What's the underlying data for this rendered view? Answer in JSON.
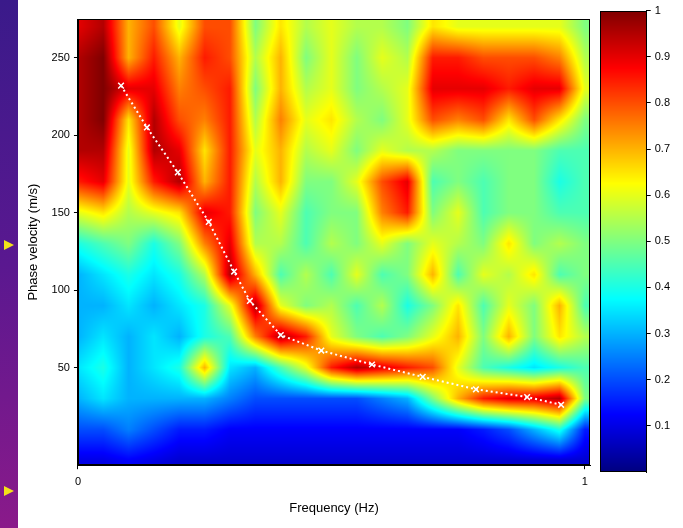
{
  "chart_data": {
    "type": "heatmap",
    "xlabel": "Frequency (Hz)",
    "ylabel": "Phase velocity (m/s)",
    "xlim": [
      0,
      1.01
    ],
    "xticks": [
      0,
      1
    ],
    "ylim": [
      -13,
      275
    ],
    "yticks": [
      50,
      100,
      150,
      200,
      250
    ],
    "grid": false,
    "heatmap": {
      "x": [
        0,
        0.05,
        0.1,
        0.15,
        0.2,
        0.25,
        0.3,
        0.35,
        0.4,
        0.45,
        0.5,
        0.55,
        0.6,
        0.65,
        0.7,
        0.75,
        0.8,
        0.85,
        0.9,
        0.95,
        1
      ],
      "y": [
        -10,
        10,
        30,
        50,
        70,
        90,
        110,
        130,
        150,
        170,
        190,
        210,
        230,
        250,
        270
      ],
      "values": [
        [
          0.1,
          0.1,
          0.12,
          0.1,
          0.08,
          0.08,
          0.08,
          0.08,
          0.08,
          0.08,
          0.08,
          0.08,
          0.08,
          0.08,
          0.08,
          0.08,
          0.08,
          0.08,
          0.08,
          0.08,
          0.08
        ],
        [
          0.2,
          0.2,
          0.25,
          0.2,
          0.15,
          0.15,
          0.12,
          0.12,
          0.12,
          0.12,
          0.12,
          0.12,
          0.12,
          0.12,
          0.12,
          0.12,
          0.15,
          0.2,
          0.3,
          0.4,
          0.15
        ],
        [
          0.3,
          0.35,
          0.3,
          0.3,
          0.3,
          0.3,
          0.25,
          0.2,
          0.2,
          0.2,
          0.2,
          0.2,
          0.25,
          0.3,
          0.5,
          0.7,
          0.85,
          0.9,
          0.9,
          0.95,
          0.5
        ],
        [
          0.35,
          0.4,
          0.3,
          0.35,
          0.4,
          0.7,
          0.35,
          0.3,
          0.45,
          0.6,
          0.85,
          0.95,
          0.9,
          0.85,
          0.8,
          0.6,
          0.45,
          0.4,
          0.35,
          0.4,
          0.45
        ],
        [
          0.3,
          0.35,
          0.3,
          0.35,
          0.3,
          0.4,
          0.45,
          0.75,
          0.95,
          0.85,
          0.6,
          0.5,
          0.45,
          0.5,
          0.6,
          0.7,
          0.5,
          0.7,
          0.5,
          0.65,
          0.55
        ],
        [
          0.3,
          0.3,
          0.35,
          0.3,
          0.35,
          0.4,
          0.6,
          0.95,
          0.6,
          0.5,
          0.55,
          0.45,
          0.55,
          0.4,
          0.5,
          0.65,
          0.45,
          0.6,
          0.5,
          0.7,
          0.45
        ],
        [
          0.3,
          0.35,
          0.4,
          0.35,
          0.4,
          0.55,
          0.95,
          0.7,
          0.45,
          0.55,
          0.45,
          0.6,
          0.45,
          0.5,
          0.7,
          0.45,
          0.6,
          0.55,
          0.65,
          0.45,
          0.5
        ],
        [
          0.4,
          0.45,
          0.5,
          0.4,
          0.5,
          0.75,
          0.9,
          0.55,
          0.55,
          0.45,
          0.55,
          0.5,
          0.6,
          0.5,
          0.6,
          0.55,
          0.5,
          0.65,
          0.5,
          0.55,
          0.5
        ],
        [
          0.6,
          0.65,
          0.55,
          0.6,
          0.65,
          0.9,
          0.85,
          0.5,
          0.6,
          0.45,
          0.5,
          0.5,
          0.75,
          0.85,
          0.5,
          0.6,
          0.45,
          0.5,
          0.5,
          0.45,
          0.45
        ],
        [
          0.85,
          0.9,
          0.6,
          0.85,
          0.95,
          0.7,
          0.85,
          0.55,
          0.7,
          0.5,
          0.5,
          0.6,
          0.8,
          0.9,
          0.45,
          0.5,
          0.45,
          0.5,
          0.5,
          0.4,
          0.45
        ],
        [
          0.95,
          0.95,
          0.6,
          0.95,
          0.9,
          0.65,
          0.85,
          0.6,
          0.7,
          0.55,
          0.6,
          0.5,
          0.6,
          0.55,
          0.55,
          0.5,
          0.5,
          0.5,
          0.5,
          0.45,
          0.45
        ],
        [
          0.95,
          1,
          0.65,
          0.95,
          0.8,
          0.75,
          0.85,
          0.55,
          0.75,
          0.6,
          0.65,
          0.55,
          0.5,
          0.6,
          0.8,
          0.75,
          0.8,
          0.65,
          0.8,
          0.65,
          0.5
        ],
        [
          0.95,
          1,
          0.9,
          0.9,
          0.75,
          0.8,
          0.85,
          0.5,
          0.7,
          0.55,
          0.6,
          0.5,
          0.55,
          0.6,
          0.9,
          0.9,
          0.9,
          0.85,
          0.9,
          0.9,
          0.6
        ],
        [
          0.95,
          1,
          0.7,
          0.85,
          0.7,
          0.85,
          0.8,
          0.55,
          0.7,
          0.5,
          0.6,
          0.5,
          0.6,
          0.55,
          0.85,
          0.85,
          0.8,
          0.8,
          0.8,
          0.75,
          0.55
        ],
        [
          0.9,
          0.95,
          0.7,
          0.8,
          0.6,
          0.8,
          0.8,
          0.5,
          0.65,
          0.55,
          0.6,
          0.55,
          0.55,
          0.5,
          0.65,
          0.6,
          0.6,
          0.6,
          0.6,
          0.6,
          0.5
        ]
      ]
    },
    "colorbar": {
      "lim": [
        0,
        1
      ],
      "ticks": [
        0.1,
        0.2,
        0.3,
        0.4,
        0.5,
        0.6,
        0.7,
        0.8,
        0.9,
        1
      ]
    },
    "series": [
      {
        "type": "line",
        "color": "#ffffff",
        "marker": "x",
        "line_style": "dotted",
        "x": [
          0.085,
          0.136,
          0.197,
          0.258,
          0.308,
          0.339,
          0.4,
          0.48,
          0.58,
          0.68,
          0.785,
          0.886,
          0.953
        ],
        "values": [
          232,
          205,
          176,
          144,
          112,
          93,
          71,
          61,
          52,
          44,
          36,
          31,
          26
        ]
      }
    ]
  }
}
